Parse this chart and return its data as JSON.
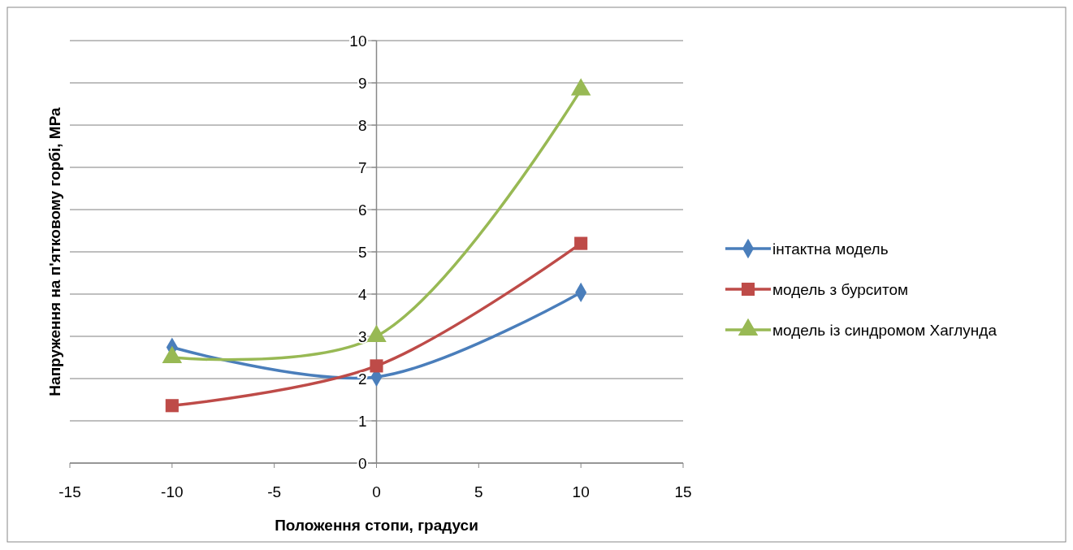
{
  "chart_data": {
    "type": "line",
    "xlabel": "Положення стопи, градуси",
    "ylabel": "Напруження на п'ятковому горбі, МРа",
    "x": [
      -10,
      0,
      10
    ],
    "xlim": [
      -15,
      15
    ],
    "xticks": [
      -15,
      -10,
      -5,
      0,
      5,
      10,
      15
    ],
    "ylim": [
      0,
      10
    ],
    "yticks": [
      0,
      1,
      2,
      3,
      4,
      5,
      6,
      7,
      8,
      9,
      10
    ],
    "grid": "y",
    "legend": "right",
    "series": [
      {
        "name": "інтактна модель",
        "color": "#4a7ebb",
        "marker": "diamond",
        "values": [
          2.74,
          2.04,
          4.04
        ]
      },
      {
        "name": "модель з бурситом",
        "color": "#be4b48",
        "marker": "square",
        "values": [
          1.36,
          2.3,
          5.2
        ]
      },
      {
        "name": "модель із синдромом Хаглунда",
        "color": "#98b954",
        "marker": "triangle",
        "values": [
          2.5,
          3.0,
          8.84
        ]
      }
    ]
  }
}
